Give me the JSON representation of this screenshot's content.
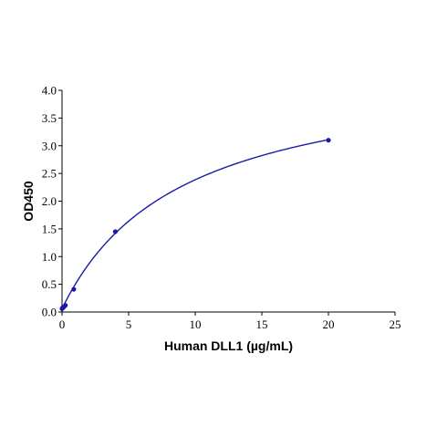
{
  "chart_data": {
    "type": "scatter",
    "title": "",
    "xlabel": "Human DLL1 (µg/mL)",
    "ylabel": "OD450",
    "xlim": [
      0,
      25
    ],
    "ylim": [
      0,
      4.0
    ],
    "x_ticks": [
      0,
      5,
      10,
      15,
      20,
      25
    ],
    "y_ticks": [
      0.0,
      0.5,
      1.0,
      1.5,
      2.0,
      2.5,
      3.0,
      3.5,
      4.0
    ],
    "x_tick_labels": [
      "0",
      "5",
      "10",
      "15",
      "20",
      "25"
    ],
    "y_tick_labels": [
      "0.0",
      "0.5",
      "1.0",
      "1.5",
      "2.0",
      "2.5",
      "3.0",
      "3.5",
      "4.0"
    ],
    "grid": false,
    "legend": "none",
    "series": [
      {
        "x": [
          0.0,
          0.03,
          0.06,
          0.13,
          0.25,
          0.88,
          4.0,
          20.0
        ],
        "y": [
          0.06,
          0.07,
          0.08,
          0.09,
          0.12,
          0.41,
          1.45,
          3.1
        ],
        "fit_curve": "saturation",
        "color": "#1a1aa6"
      }
    ]
  }
}
